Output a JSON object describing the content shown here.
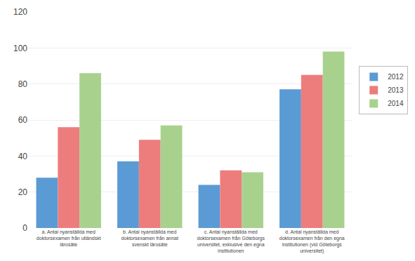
{
  "chart_data": {
    "type": "bar",
    "categories": [
      "a. Antal nyanställda med\ndoktorsexamen från utländskt\nlärosäte",
      "b. Antal nyanställda med\ndoktorsexamen från annat\nsvenskt lärosäte",
      "c. Antal nyanställda med\ndoktorsexamen från Göteborgs\nuniversitet, exklusive den egna\ninstitutionen",
      "d. Antal nyanställda med\ndoktorsexamen från den egna\ninstitutionen (vid Göteborgs\nuniversitet)"
    ],
    "series": [
      {
        "name": "2012",
        "color": "#5B9BD5",
        "values": [
          28,
          37,
          24,
          77
        ]
      },
      {
        "name": "2013",
        "color": "#ED7D7D",
        "values": [
          56,
          49,
          32,
          85
        ]
      },
      {
        "name": "2014",
        "color": "#A9D18E",
        "values": [
          86,
          57,
          31,
          98
        ]
      }
    ],
    "ylim": [
      0,
      120
    ],
    "yticks": [
      0,
      20,
      40,
      60,
      80,
      100,
      120
    ],
    "grid": true,
    "legend": "right"
  }
}
